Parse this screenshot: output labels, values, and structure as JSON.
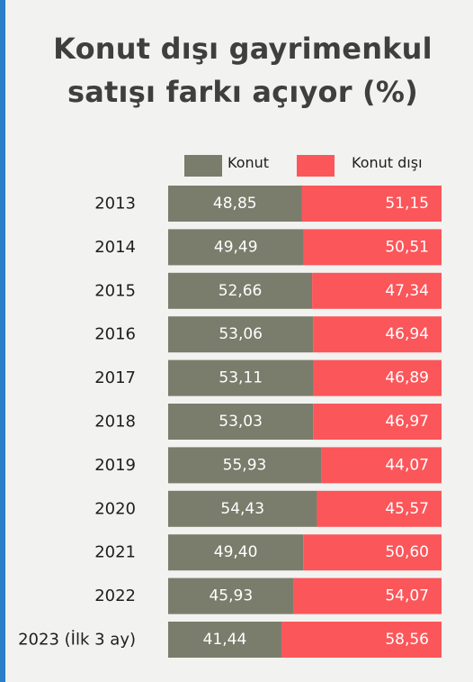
{
  "title_lines": [
    "Konut dışı gayrimenkul",
    "satışı farkı açıyor (%)"
  ],
  "colors": {
    "konut": "#7a7d6c",
    "konut_disi": "#fb565a",
    "background": "#f2f2f0",
    "title": "#3f3f3f",
    "text": "#1e1e1e"
  },
  "chart_data": {
    "type": "bar",
    "orientation": "horizontal",
    "stacked": true,
    "normalized_to": 100,
    "title": "Konut dışı gayrimenkul satışı farkı açıyor (%)",
    "legend_position": "top-right",
    "categories": [
      "2013",
      "2014",
      "2015",
      "2016",
      "2017",
      "2018",
      "2019",
      "2020",
      "2021",
      "2022",
      "2023 (İlk 3 ay)"
    ],
    "series": [
      {
        "name": "Konut",
        "values": [
          48.85,
          49.49,
          52.66,
          53.06,
          53.11,
          53.03,
          55.93,
          54.43,
          49.4,
          45.93,
          41.44
        ],
        "labels": [
          "48,85",
          "49,49",
          "52,66",
          "53,06",
          "53,11",
          "53,03",
          "55,93",
          "54,43",
          "49,40",
          "45,93",
          "41,44"
        ]
      },
      {
        "name": "Konut dışı",
        "values": [
          51.15,
          50.51,
          47.34,
          46.94,
          46.89,
          46.97,
          44.07,
          45.57,
          50.6,
          54.07,
          58.56
        ],
        "labels": [
          "51,15",
          "50,51",
          "47,34",
          "46,94",
          "46,89",
          "46,97",
          "44,07",
          "45,57",
          "50,60",
          "54,07",
          "58,56"
        ]
      }
    ]
  }
}
